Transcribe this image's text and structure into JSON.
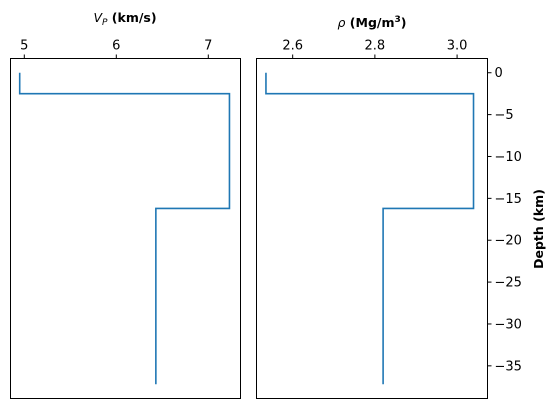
{
  "chart_data": [
    {
      "type": "line",
      "title": "",
      "xlabel": "V_P (km/s)",
      "xlabel_parts": {
        "symbol": "V",
        "subscript": "P",
        "unit": " (km/s)"
      },
      "ylabel": "",
      "xlim": [
        4.85,
        7.35
      ],
      "ylim": [
        -38.9,
        1.7
      ],
      "xticks": [
        5,
        6,
        7
      ],
      "xtick_labels": [
        "5",
        "6",
        "7"
      ],
      "x_axis_position": "top",
      "series": [
        {
          "name": "Vp",
          "color": "#1f77b4",
          "x": [
            4.95,
            4.95,
            7.23,
            7.23,
            6.43,
            6.43
          ],
          "y": [
            0,
            -2.5,
            -2.5,
            -16.2,
            -16.2,
            -37.2
          ]
        }
      ]
    },
    {
      "type": "line",
      "title": "",
      "xlabel": "ρ (Mg/m³)",
      "xlabel_parts": {
        "symbol": "ρ",
        "unit_prefix": " (Mg/m",
        "superscript": "3",
        "unit_suffix": ")"
      },
      "ylabel": "Depth (km)",
      "xlim": [
        2.512,
        3.074
      ],
      "ylim": [
        -38.9,
        1.7
      ],
      "xticks": [
        2.6,
        2.8,
        3.0
      ],
      "xtick_labels": [
        "2.6",
        "2.8",
        "3.0"
      ],
      "yticks": [
        0,
        -5,
        -10,
        -15,
        -20,
        -25,
        -30,
        -35
      ],
      "ytick_labels": [
        "0",
        "−5",
        "−10",
        "−15",
        "−20",
        "−25",
        "−30",
        "−35"
      ],
      "x_axis_position": "top",
      "y_axis_position": "right",
      "series": [
        {
          "name": "density",
          "color": "#1f77b4",
          "x": [
            2.535,
            2.535,
            3.04,
            3.04,
            2.82,
            2.82
          ],
          "y": [
            0,
            -2.5,
            -2.5,
            -16.2,
            -16.2,
            -37.2
          ]
        }
      ]
    }
  ]
}
